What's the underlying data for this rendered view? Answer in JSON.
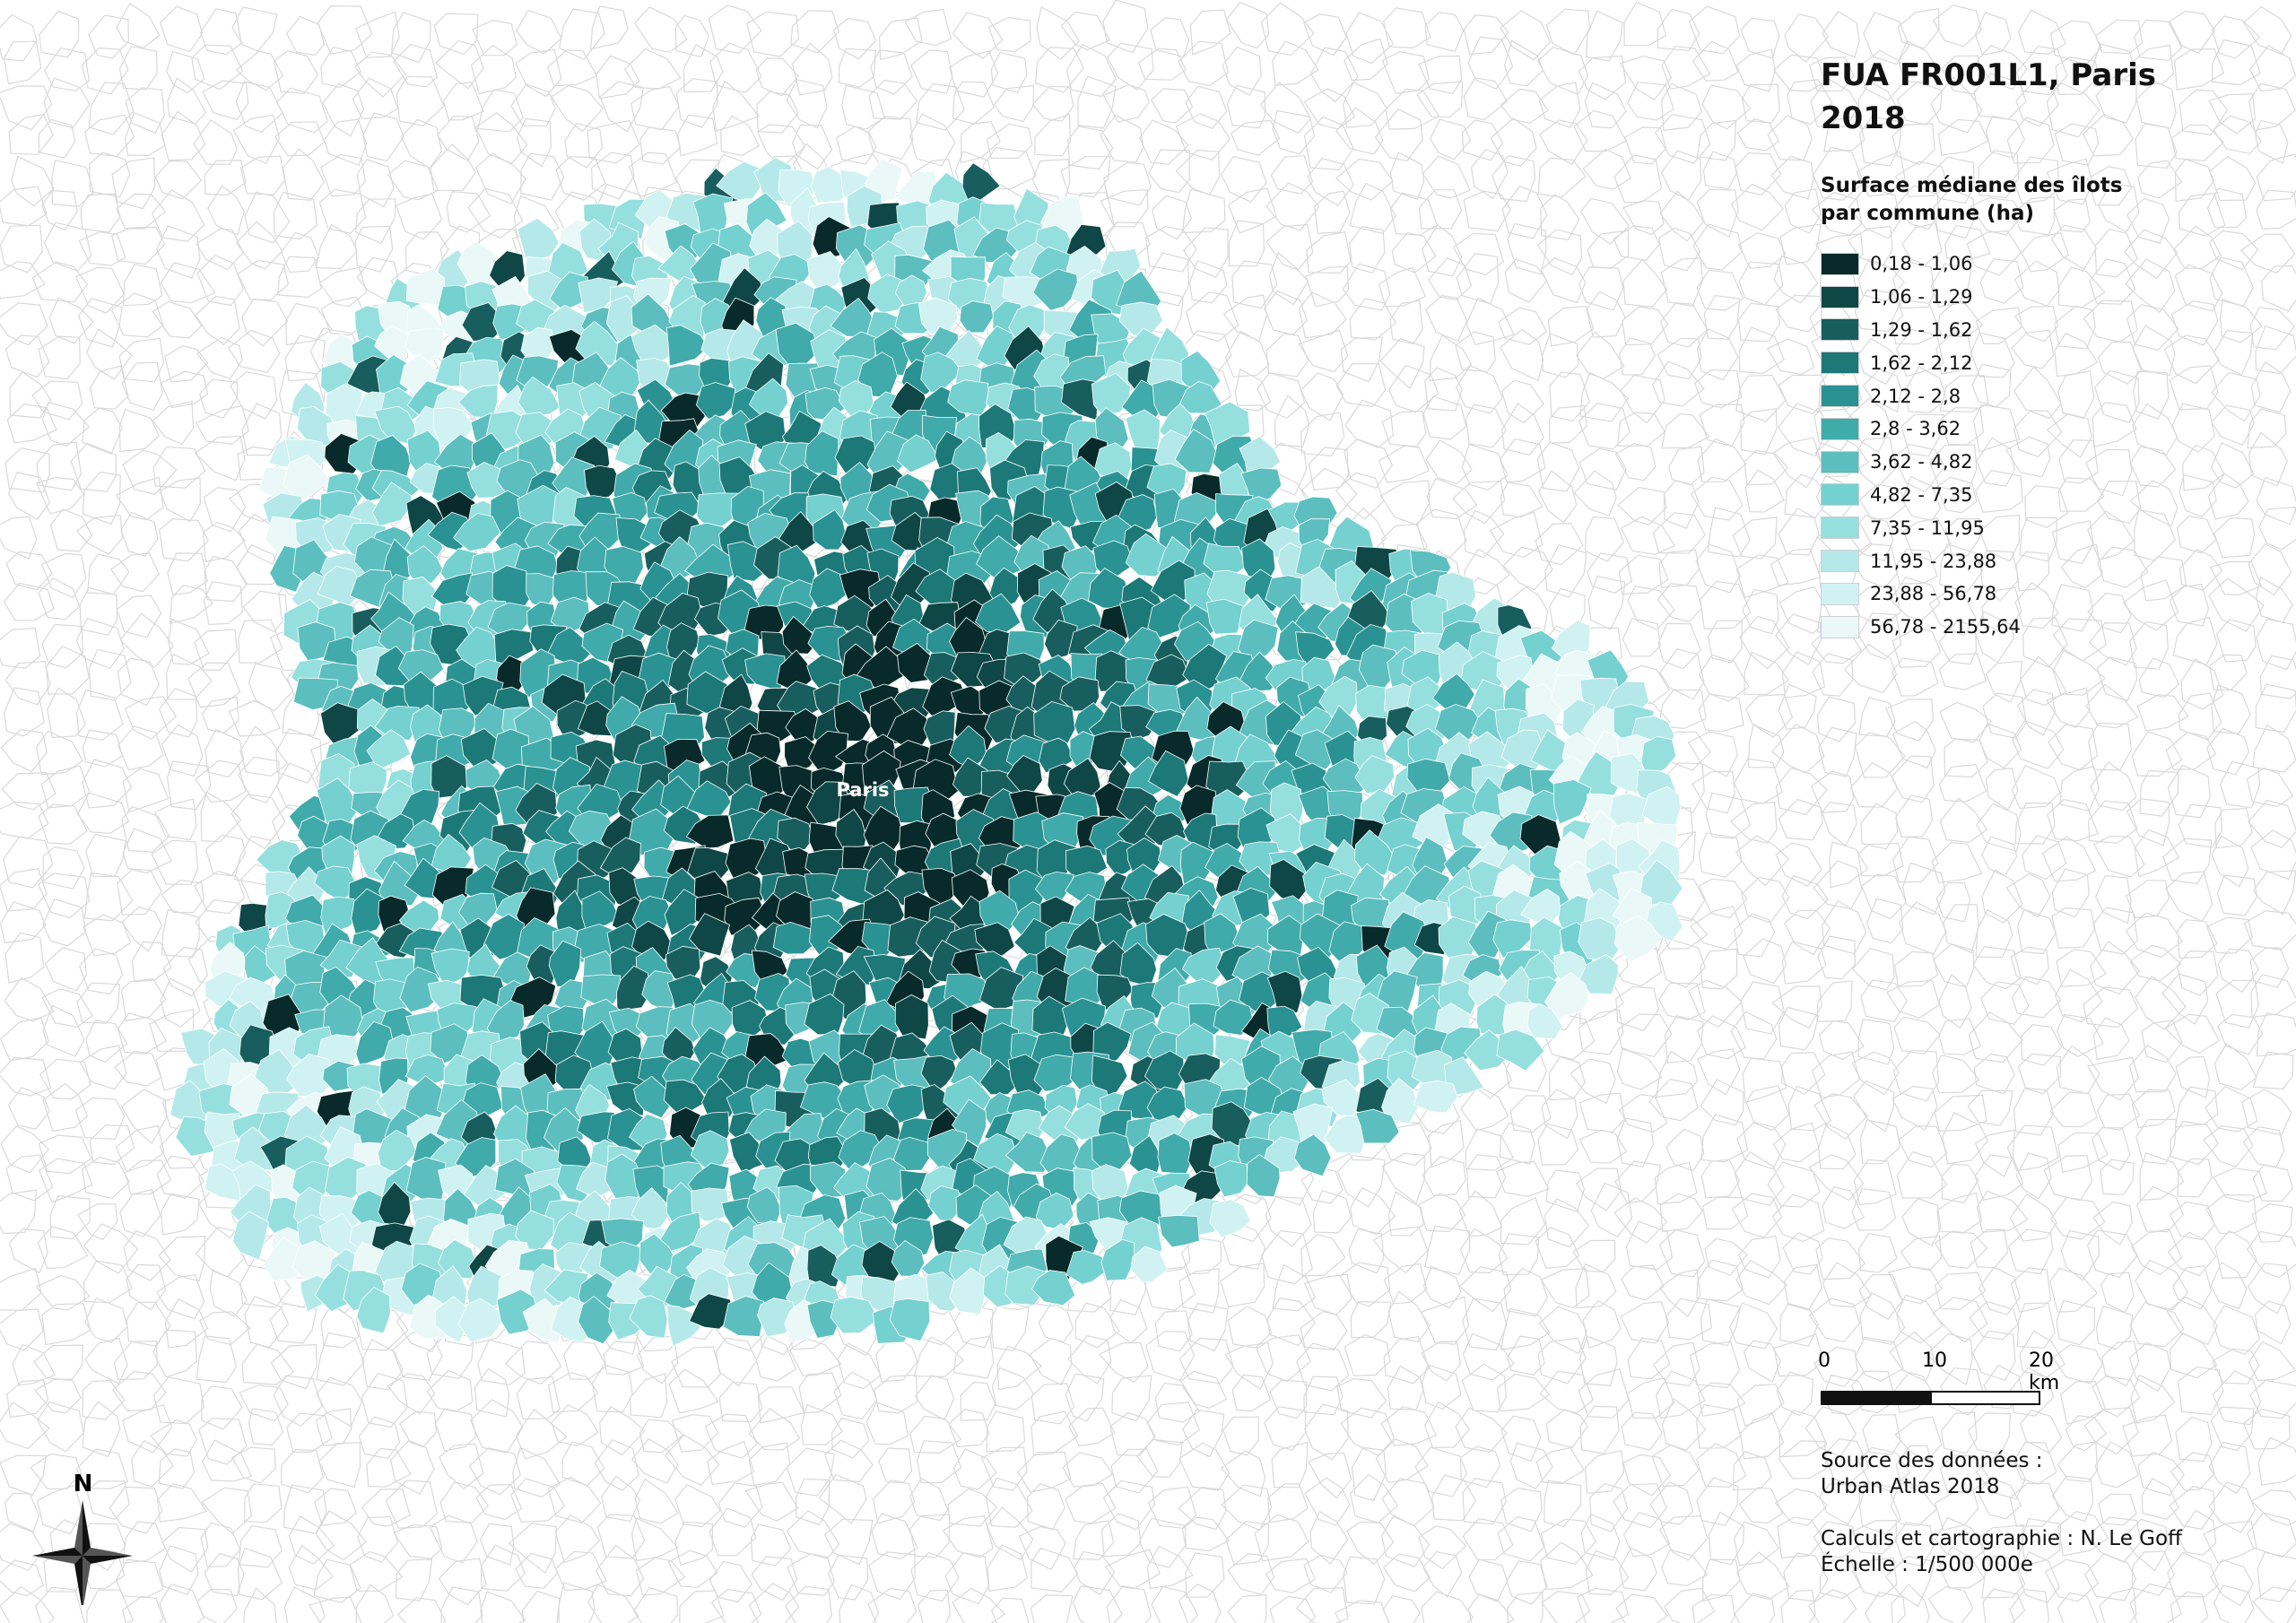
{
  "title_line1": "FUA FR001L1, Paris",
  "title_line2": "2018",
  "legend": {
    "title_line1": "Surface médiane des îlots",
    "title_line2": "par commune (ha)",
    "classes": [
      {
        "label": "0,18 - 1,06",
        "color": "#082a2a"
      },
      {
        "label": "1,06 - 1,29",
        "color": "#0f4646"
      },
      {
        "label": "1,29 - 1,62",
        "color": "#185e5e"
      },
      {
        "label": "1,62 - 2,12",
        "color": "#1d7878"
      },
      {
        "label": "2,12 - 2,8",
        "color": "#2a9292"
      },
      {
        "label": "2,8 - 3,62",
        "color": "#41aaaa"
      },
      {
        "label": "3,62 - 4,82",
        "color": "#5cbebe"
      },
      {
        "label": "4,82 - 7,35",
        "color": "#75d0d0"
      },
      {
        "label": "7,35 - 11,95",
        "color": "#96dfdf"
      },
      {
        "label": "11,95 - 23,88",
        "color": "#b5e9e9"
      },
      {
        "label": "23,88 - 56,78",
        "color": "#d1f2f2"
      },
      {
        "label": "56,78 - 2155,64",
        "color": "#eaf8f8"
      }
    ]
  },
  "city_label": "Paris",
  "scale": {
    "tick0": "0",
    "tick1": "10",
    "tick2": "20 km"
  },
  "credits": {
    "source_line1": "Source des données :",
    "source_line2": "Urban Atlas 2018",
    "author": "Calculs et cartographie : N. Le Goff",
    "scale_text": "Échelle : 1/500 000e"
  },
  "north_label": "N",
  "icons": {
    "north": "north-arrow-icon"
  }
}
